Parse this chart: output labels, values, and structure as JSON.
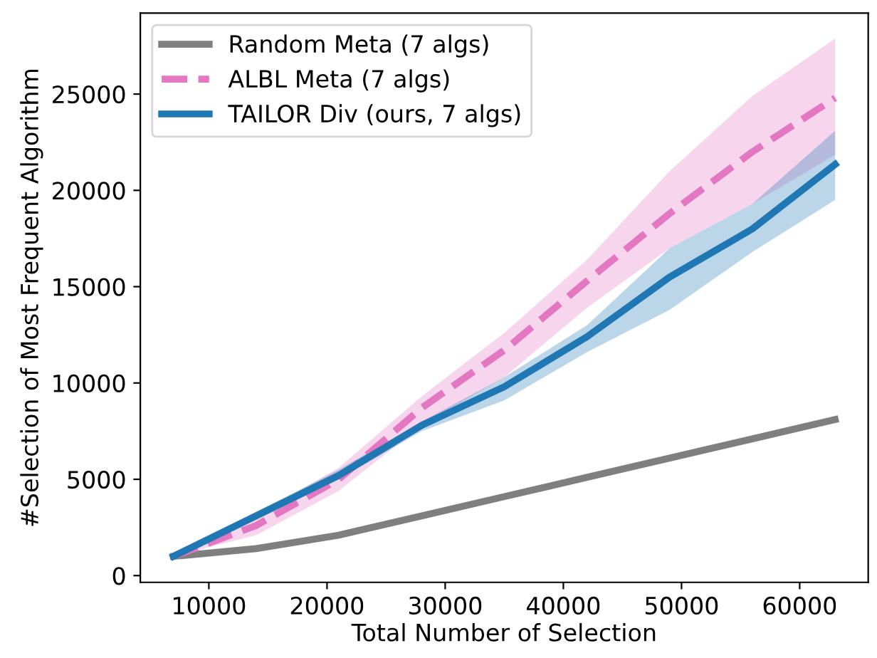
{
  "chart_data": {
    "type": "line",
    "xlabel": "Total Number of Selection",
    "ylabel": "#Selection of Most Frequent Algorithm",
    "x": [
      7000,
      14000,
      21000,
      28000,
      35000,
      42000,
      49000,
      56000,
      63000
    ],
    "series": [
      {
        "name": "Random Meta (7 algs)",
        "color": "#7f7f7f",
        "line_style": "solid",
        "values": [
          1000,
          1400,
          2100,
          3100,
          4100,
          5100,
          6100,
          7100,
          8100
        ]
      },
      {
        "name": "ALBL Meta (7 algs)",
        "color": "#e377c2",
        "line_style": "dashed",
        "values": [
          1000,
          2600,
          5000,
          8700,
          11700,
          15300,
          18800,
          22000,
          24800
        ],
        "lower": [
          1000,
          2100,
          4400,
          7800,
          10300,
          13900,
          17000,
          19300,
          21850
        ],
        "upper": [
          1000,
          3100,
          5600,
          9300,
          12600,
          16400,
          21000,
          24900,
          27880
        ]
      },
      {
        "name": "TAILOR Div (ours, 7 algs)",
        "color": "#1f77b4",
        "line_style": "solid",
        "values": [
          1000,
          3100,
          5200,
          7800,
          9800,
          12400,
          15500,
          18000,
          21350
        ],
        "lower": [
          1000,
          2900,
          5000,
          7500,
          9100,
          11600,
          13800,
          16800,
          19500
        ],
        "upper": [
          1000,
          3300,
          5500,
          8000,
          10300,
          13000,
          17000,
          19300,
          23100
        ]
      }
    ],
    "xlim": [
      4200,
      65800
    ],
    "ylim": [
      -350,
      29200
    ],
    "xticks": [
      10000,
      20000,
      30000,
      40000,
      50000,
      60000
    ],
    "yticks": [
      0,
      5000,
      10000,
      15000,
      20000,
      25000
    ],
    "legend": "top left",
    "grid": false
  }
}
